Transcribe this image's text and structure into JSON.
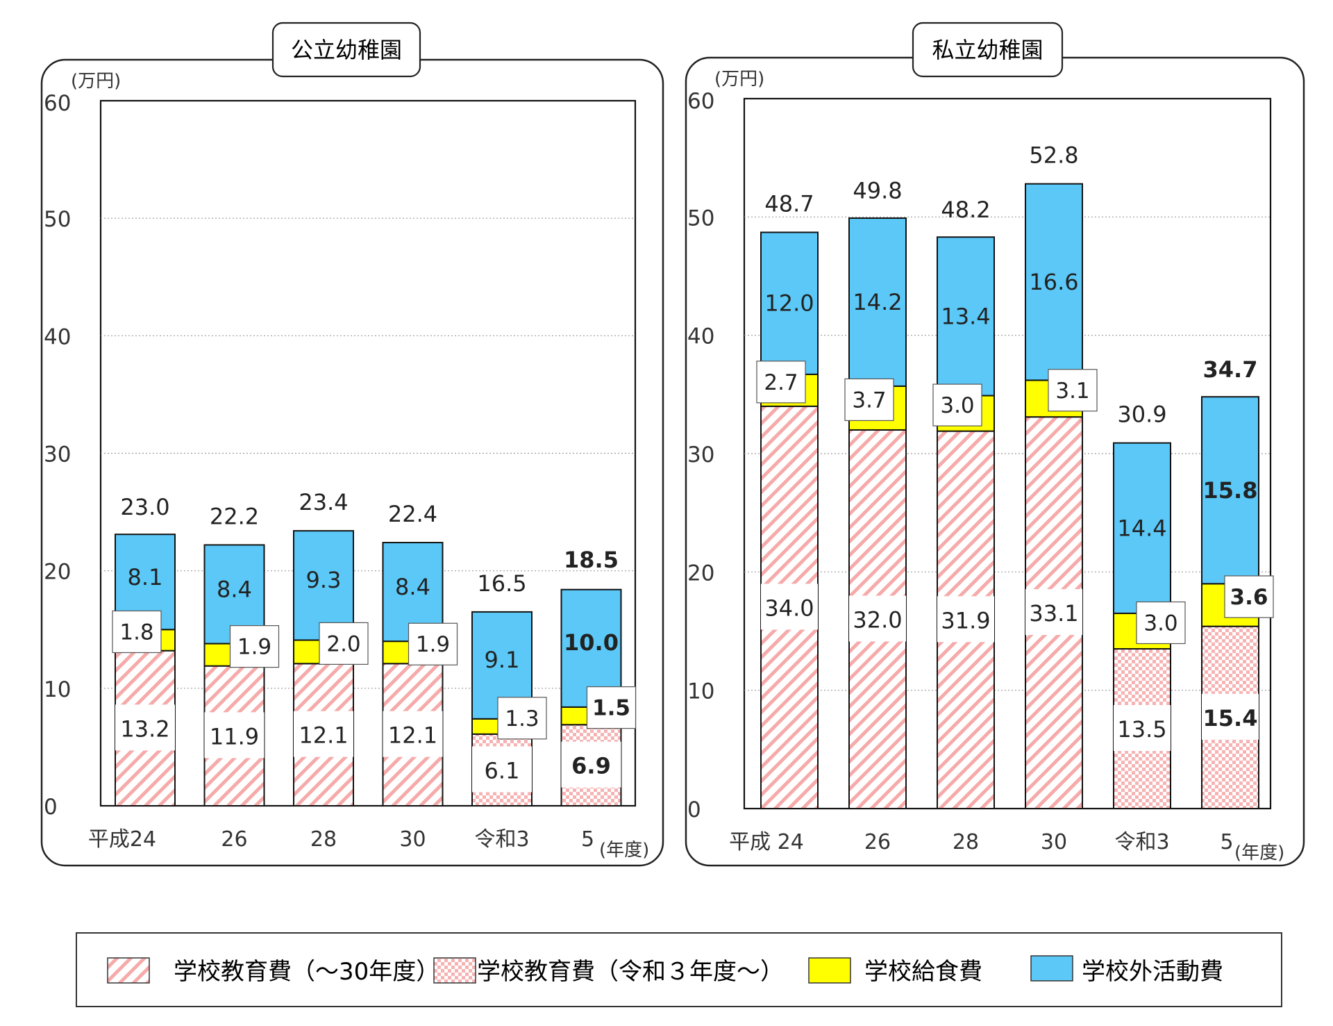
{
  "colors": {
    "school_edu": "#f4a6a6",
    "lunch": "#ffff00",
    "outside": "#5bc8f7",
    "grid": "#999999",
    "frame": "#333333"
  },
  "legend": {
    "items": [
      {
        "label": "学校教育費（～30年度）",
        "pattern": "stripes"
      },
      {
        "label": "学校教育費（令和３年度～）",
        "pattern": "check"
      },
      {
        "label": "学校給食費",
        "pattern": "lunch"
      },
      {
        "label": "学校外活動費",
        "pattern": "outside"
      }
    ]
  },
  "chart_data": [
    {
      "type": "bar",
      "stacked": true,
      "title": "公立幼稚園",
      "ylabel": "(万円)",
      "xlabel": "(年度)",
      "ylim": [
        0,
        60
      ],
      "yticks": [
        "0",
        "10",
        "20",
        "30",
        "40",
        "50",
        "60"
      ],
      "categories": [
        "平成24",
        "26",
        "28",
        "30",
        "令和3",
        "5"
      ],
      "series": [
        {
          "name": "学校教育費",
          "values": [
            13.2,
            11.9,
            12.1,
            12.1,
            6.1,
            6.9
          ],
          "labels": [
            "13.2",
            "11.9",
            "12.1",
            "12.1",
            "6.1",
            "6.9"
          ]
        },
        {
          "name": "学校給食費",
          "values": [
            1.8,
            1.9,
            2.0,
            1.9,
            1.3,
            1.5
          ],
          "labels": [
            "1.8",
            "1.9",
            "2.0",
            "1.9",
            "1.3",
            "1.5"
          ]
        },
        {
          "name": "学校外活動費",
          "values": [
            8.1,
            8.4,
            9.3,
            8.4,
            9.1,
            10.0
          ],
          "labels": [
            "8.1",
            "8.4",
            "9.3",
            "8.4",
            "9.1",
            "10.0"
          ]
        }
      ],
      "totals": [
        23.0,
        22.2,
        23.4,
        22.4,
        16.5,
        18.5
      ],
      "total_labels": [
        "23.0",
        "22.2",
        "23.4",
        "22.4",
        "16.5",
        "18.5"
      ],
      "reiwa_from_index": 4,
      "bold_index": 5
    },
    {
      "type": "bar",
      "stacked": true,
      "title": "私立幼稚園",
      "ylabel": "(万円)",
      "xlabel": "(年度)",
      "ylim": [
        0,
        60
      ],
      "yticks": [
        "0",
        "10",
        "20",
        "30",
        "40",
        "50",
        "60"
      ],
      "categories": [
        "平成 24",
        "26",
        "28",
        "30",
        "令和3",
        "5"
      ],
      "series": [
        {
          "name": "学校教育費",
          "values": [
            34.0,
            32.0,
            31.9,
            33.1,
            13.5,
            15.4
          ],
          "labels": [
            "34.0",
            "32.0",
            "31.9",
            "33.1",
            "13.5",
            "15.4"
          ]
        },
        {
          "name": "学校給食費",
          "values": [
            2.7,
            3.7,
            3.0,
            3.1,
            3.0,
            3.6
          ],
          "labels": [
            "2.7",
            "3.7",
            "3.0",
            "3.1",
            "3.0",
            "3.6"
          ]
        },
        {
          "name": "学校外活動費",
          "values": [
            12.0,
            14.2,
            13.4,
            16.6,
            14.4,
            15.8
          ],
          "labels": [
            "12.0",
            "14.2",
            "13.4",
            "16.6",
            "14.4",
            "15.8"
          ]
        }
      ],
      "totals": [
        48.7,
        49.8,
        48.2,
        52.8,
        30.9,
        34.7
      ],
      "total_labels": [
        "48.7",
        "49.8",
        "48.2",
        "52.8",
        "30.9",
        "34.7"
      ],
      "reiwa_from_index": 4,
      "bold_index": 5
    }
  ]
}
